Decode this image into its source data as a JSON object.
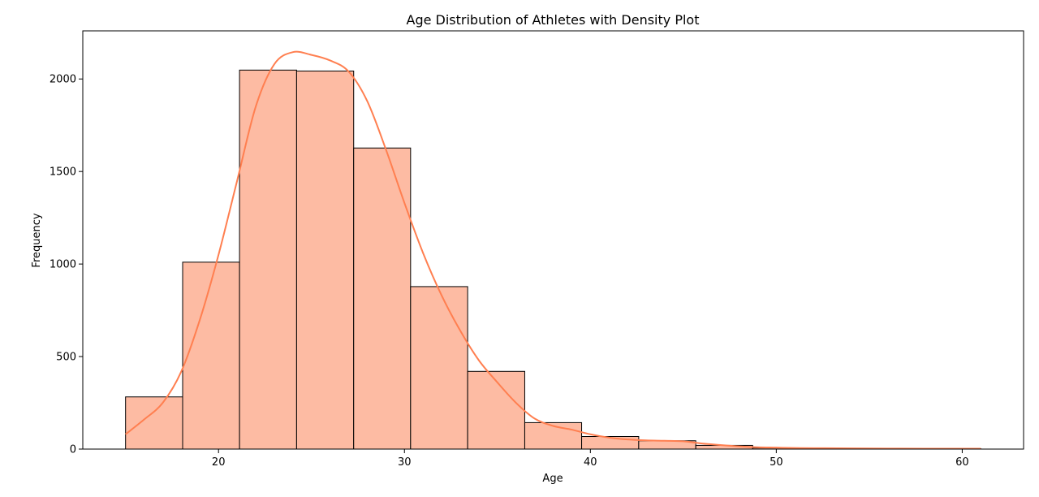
{
  "chart_data": {
    "type": "bar",
    "title": "Age Distribution of Athletes with Density Plot",
    "xlabel": "Age",
    "ylabel": "Frequency",
    "xlim": [
      12.7,
      63.3
    ],
    "ylim": [
      0,
      2260
    ],
    "xticks": [
      20,
      30,
      40,
      50,
      60
    ],
    "yticks": [
      0,
      500,
      1000,
      1500,
      2000
    ],
    "bin_edges": [
      15.0,
      18.07,
      21.13,
      24.2,
      27.27,
      30.33,
      33.4,
      36.47,
      39.53,
      42.6,
      45.67,
      48.73,
      51.8,
      54.87,
      57.93,
      61.0
    ],
    "values": [
      282,
      1010,
      2048,
      2043,
      1627,
      878,
      420,
      143,
      68,
      45,
      20,
      6,
      4,
      3,
      2
    ],
    "bar_color": "#fdbba3",
    "bar_edge_color": "#000000",
    "density_curve": {
      "color": "#ff7f50",
      "x": [
        15,
        16,
        17,
        18,
        19,
        20,
        21,
        22,
        23,
        24,
        25,
        26,
        27,
        28,
        29,
        30,
        31,
        32,
        33,
        34,
        35,
        36,
        37,
        38,
        39,
        40,
        41,
        42,
        43,
        44,
        45,
        46,
        47,
        48,
        49,
        50,
        51,
        52,
        54,
        56,
        58,
        61
      ],
      "y": [
        80,
        160,
        250,
        420,
        700,
        1050,
        1450,
        1850,
        2080,
        2145,
        2130,
        2100,
        2040,
        1880,
        1620,
        1330,
        1060,
        830,
        640,
        480,
        360,
        250,
        165,
        125,
        105,
        80,
        62,
        52,
        47,
        45,
        42,
        30,
        22,
        15,
        10,
        8,
        6,
        5,
        4,
        3,
        2,
        2
      ]
    }
  }
}
